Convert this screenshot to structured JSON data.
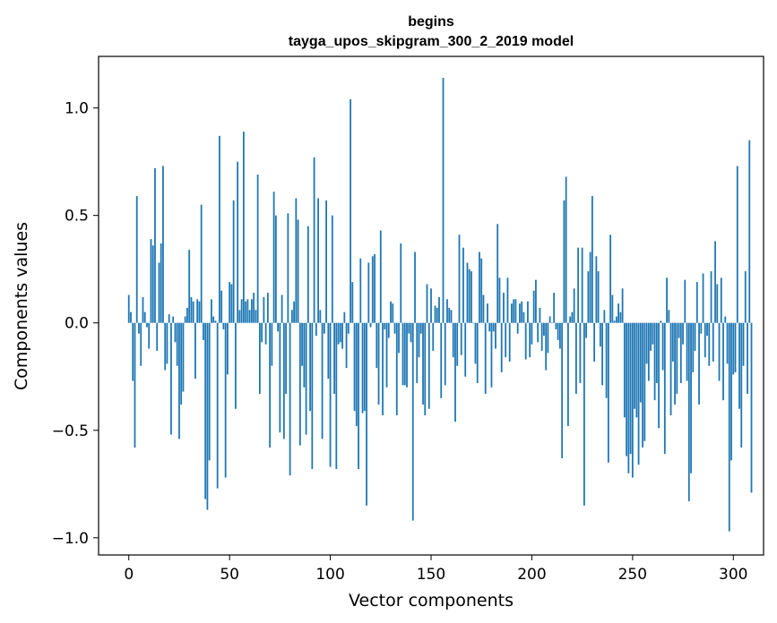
{
  "chart_data": {
    "type": "bar",
    "title": "begins",
    "subtitle": "tayga_upos_skipgram_300_2_2019 model",
    "xlabel": "Vector components",
    "ylabel": "Components values",
    "xlim": [
      -15,
      315
    ],
    "ylim": [
      -1.08,
      1.24
    ],
    "xticks": [
      0,
      50,
      100,
      150,
      200,
      250,
      300
    ],
    "xtick_labels": [
      "0",
      "50",
      "100",
      "150",
      "200",
      "250",
      "300"
    ],
    "yticks": [
      -1.0,
      -0.5,
      0.0,
      0.5,
      1.0
    ],
    "ytick_labels": [
      "−1.0",
      "−0.5",
      "0.0",
      "0.5",
      "1.0"
    ],
    "grid": false,
    "bar_color": "#1f77b4",
    "values": [
      0.13,
      0.05,
      -0.27,
      -0.58,
      0.59,
      -0.05,
      -0.2,
      0.12,
      0.05,
      -0.02,
      -0.12,
      0.39,
      0.36,
      0.72,
      -0.13,
      0.28,
      0.37,
      0.73,
      -0.22,
      -0.19,
      0.04,
      -0.52,
      0.03,
      -0.09,
      -0.2,
      -0.54,
      -0.38,
      -0.32,
      0.03,
      0.07,
      0.34,
      0.12,
      0.1,
      -0.26,
      0.11,
      0.1,
      0.55,
      -0.08,
      -0.82,
      -0.87,
      -0.64,
      0.11,
      0.03,
      0.01,
      -0.77,
      0.87,
      0.15,
      -0.03,
      -0.72,
      -0.24,
      0.19,
      0.18,
      0.57,
      -0.4,
      0.75,
      0.06,
      0.11,
      0.89,
      0.1,
      0.11,
      0.06,
      0.11,
      0.14,
      0.06,
      0.69,
      -0.33,
      -0.09,
      0.12,
      -0.1,
      0.14,
      -0.58,
      -0.2,
      0.61,
      0.5,
      -0.04,
      -0.51,
      0.13,
      -0.54,
      -0.33,
      0.51,
      -0.71,
      0.06,
      0.1,
      0.58,
      0.48,
      -0.57,
      -0.2,
      -0.3,
      -0.52,
      0.45,
      -0.41,
      -0.68,
      0.77,
      -0.06,
      0.58,
      0.06,
      -0.54,
      -0.05,
      0.57,
      -0.26,
      -0.67,
      0.5,
      -0.33,
      -0.68,
      -0.1,
      -0.09,
      -0.12,
      0.05,
      -0.21,
      -0.05,
      1.04,
      0.19,
      -0.41,
      -0.48,
      -0.68,
      0.3,
      -0.42,
      -0.41,
      -0.85,
      0.28,
      -0.02,
      0.31,
      0.32,
      -0.21,
      -0.38,
      0.43,
      -0.43,
      -0.03,
      -0.3,
      -0.07,
      0.1,
      0.09,
      -0.05,
      -0.43,
      -0.14,
      0.37,
      -0.29,
      -0.29,
      -0.3,
      -0.05,
      -0.09,
      -0.92,
      0.33,
      -0.28,
      -0.16,
      -0.05,
      -0.38,
      -0.43,
      0.18,
      -0.4,
      0.16,
      -0.13,
      0.08,
      0.07,
      0.12,
      -0.35,
      1.14,
      -0.29,
      0.11,
      0.07,
      0.06,
      -0.16,
      -0.46,
      -0.2,
      0.41,
      -0.15,
      0.35,
      -0.25,
      0.28,
      0.25,
      0.24,
      0.0,
      -0.19,
      -0.28,
      0.33,
      0.3,
      0.13,
      -0.33,
      0.09,
      -0.04,
      -0.3,
      -0.04,
      -0.12,
      0.46,
      0.21,
      -0.23,
      0.14,
      -0.16,
      0.21,
      -0.18,
      0.09,
      0.11,
      0.11,
      -0.05,
      0.09,
      0.1,
      0.05,
      -0.17,
      0.1,
      -0.16,
      -0.1,
      0.15,
      0.2,
      -0.09,
      0.07,
      -0.13,
      -0.06,
      -0.22,
      -0.14,
      0.03,
      0.0,
      0.14,
      -0.03,
      -0.08,
      -0.12,
      -0.63,
      0.57,
      0.68,
      -0.48,
      0.03,
      0.05,
      0.16,
      -0.33,
      0.35,
      -0.28,
      0.35,
      -0.85,
      -0.07,
      0.24,
      0.33,
      0.59,
      -0.18,
      0.31,
      0.24,
      -0.11,
      -0.29,
      0.06,
      -0.35,
      -0.65,
      0.41,
      0.13,
      0.01,
      0.03,
      0.09,
      0.05,
      0.16,
      -0.44,
      -0.62,
      -0.7,
      -0.61,
      -0.72,
      -0.4,
      -0.44,
      -0.66,
      -0.37,
      -0.58,
      -0.55,
      -0.19,
      -0.27,
      -0.13,
      -0.1,
      -0.36,
      -0.28,
      -0.49,
      0.01,
      -0.22,
      -0.61,
      0.21,
      0.06,
      -0.43,
      -0.18,
      -0.38,
      -0.33,
      -0.07,
      -0.28,
      -0.1,
      0.2,
      -0.27,
      -0.83,
      -0.7,
      -0.23,
      -0.13,
      0.19,
      -0.38,
      -0.05,
      0.23,
      -0.16,
      -0.06,
      -0.2,
      0.24,
      -0.18,
      0.38,
      0.18,
      -0.27,
      0.21,
      -0.36,
      0.03,
      -0.19,
      -0.97,
      -0.64,
      -0.24,
      -0.23,
      0.73,
      -0.4,
      -0.58,
      -0.2,
      0.24,
      -0.33,
      0.85,
      -0.79
    ]
  }
}
